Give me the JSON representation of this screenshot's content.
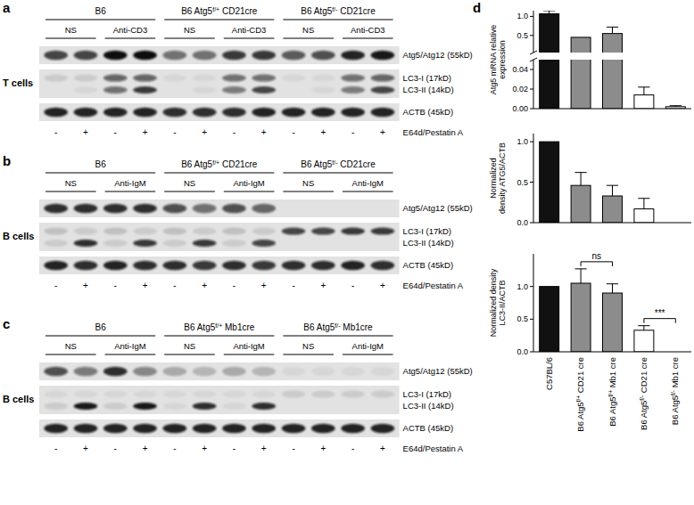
{
  "blots": [
    {
      "label": "a",
      "cell_type": "T cells",
      "groups": [
        "B6",
        "B6 Atg5f/+ CD21cre",
        "B6 Atg5f/- CD21cre"
      ],
      "stimuli": [
        "NS",
        "Anti-CD3"
      ],
      "treatment": {
        "label": "E64d/Pestatin A",
        "lanes": [
          "-",
          "+",
          "-",
          "+",
          "-",
          "+",
          "-",
          "+",
          "-",
          "+",
          "-",
          "+"
        ]
      },
      "rows": [
        {
          "labels": [
            "Atg5/Atg12 (55kD)"
          ],
          "bands": [
            [
              0.75,
              0.75,
              1,
              1,
              0.55,
              0.55,
              0.8,
              0.8,
              0.65,
              0.7,
              0.9,
              0.95
            ]
          ]
        },
        {
          "labels": [
            "LC3-I (17kD)",
            "LC3-II (14kD)"
          ],
          "bands": [
            [
              0.1,
              0.1,
              0.6,
              0.6,
              0.05,
              0.05,
              0.55,
              0.55,
              0.05,
              0.05,
              0.55,
              0.6
            ],
            [
              0,
              0.05,
              0.55,
              0.8,
              0,
              0.05,
              0.5,
              0.75,
              0,
              0.05,
              0.5,
              0.75
            ]
          ]
        },
        {
          "labels": [
            "ACTB (45kD)"
          ],
          "bands": [
            [
              0.9,
              0.9,
              0.9,
              0.9,
              0.85,
              0.85,
              0.85,
              0.9,
              0.9,
              0.9,
              0.9,
              0.9
            ]
          ]
        }
      ]
    },
    {
      "label": "b",
      "cell_type": "B cells",
      "groups": [
        "B6",
        "B6 Atg5f/+ CD21cre",
        "B6 Atg5f/- CD21cre"
      ],
      "stimuli": [
        "NS",
        "Anti-IgM"
      ],
      "treatment": {
        "label": "E64d/Pestatin A",
        "lanes": [
          "-",
          "+",
          "-",
          "+",
          "-",
          "+",
          "-",
          "+",
          "-",
          "+",
          "-",
          "+"
        ]
      },
      "rows": [
        {
          "labels": [
            "Atg5/Atg12 (55kD)"
          ],
          "bands": [
            [
              0.85,
              0.85,
              0.85,
              0.85,
              0.7,
              0.55,
              0.7,
              0.6,
              0,
              0,
              0,
              0
            ]
          ]
        },
        {
          "labels": [
            "LC3-I (17kD)",
            "LC3-II (14kD)"
          ],
          "bands": [
            [
              0.15,
              0.1,
              0.15,
              0.1,
              0.15,
              0.1,
              0.15,
              0.1,
              0.75,
              0.75,
              0.8,
              0.8
            ],
            [
              0.1,
              0.85,
              0.1,
              0.8,
              0.1,
              0.8,
              0.1,
              0.75,
              0,
              0,
              0,
              0
            ]
          ]
        },
        {
          "labels": [
            "ACTB (45kD)"
          ],
          "bands": [
            [
              0.9,
              0.85,
              0.9,
              0.85,
              0.85,
              0.8,
              0.85,
              0.8,
              0.85,
              0.85,
              0.9,
              0.85
            ]
          ]
        }
      ]
    },
    {
      "label": "c",
      "cell_type": "B cells",
      "groups": [
        "B6",
        "B6 Atg5f/+ Mb1cre",
        "B6 Atg5f/- Mb1cre"
      ],
      "stimuli": [
        "NS",
        "Anti-IgM"
      ],
      "treatment": {
        "label": "E64d/Pestatin A",
        "lanes": [
          "-",
          "+",
          "-",
          "+",
          "-",
          "+",
          "-",
          "+",
          "-",
          "+",
          "-",
          "+"
        ]
      },
      "rows": [
        {
          "labels": [
            "Atg5/Atg12 (55kD)"
          ],
          "bands": [
            [
              0.7,
              0.5,
              0.85,
              0.45,
              0.25,
              0.2,
              0.25,
              0.2,
              0.05,
              0.05,
              0.05,
              0.05
            ]
          ]
        },
        {
          "labels": [
            "LC3-I (17kD)",
            "LC3-II (14kD)"
          ],
          "bands": [
            [
              0.05,
              0.05,
              0.05,
              0.05,
              0.05,
              0.05,
              0.05,
              0.05,
              0.1,
              0.1,
              0.1,
              0.1
            ],
            [
              0.1,
              0.95,
              0.1,
              0.95,
              0.05,
              0.85,
              0.05,
              0.85,
              0,
              0,
              0,
              0
            ]
          ]
        },
        {
          "labels": [
            "ACTB (45kD)"
          ],
          "bands": [
            [
              0.9,
              0.9,
              0.9,
              0.9,
              0.9,
              0.9,
              0.9,
              0.9,
              0.9,
              0.9,
              0.9,
              0.9
            ]
          ]
        }
      ]
    }
  ],
  "panel_label": "d",
  "chart_data": [
    {
      "type": "bar",
      "y_label": "Atg5 mRNA relative expression",
      "categories": [
        "C57BL/6",
        "B6 Atg5f/+ CD21 cre",
        "B6 Atg5f/+ Mb1 cre",
        "B6 Atg5f/- CD21 cre",
        "B6 Atg5f/- Mb1 cre"
      ],
      "values": [
        1.07,
        0.45,
        0.55,
        0.014,
        0.002
      ],
      "errors": [
        0.08,
        null,
        0.17,
        0.008,
        0.001
      ],
      "colors": [
        "#111111",
        "#8c8c8c",
        "#8c8c8c",
        "#ffffff",
        "#ffffff"
      ],
      "ylim": [
        0,
        1.15
      ],
      "yticks": [
        {
          "value": 0,
          "label": "0.00"
        },
        {
          "value": 0.02,
          "label": "0.02"
        },
        {
          "value": 0.04,
          "label": "0.04"
        },
        {
          "value": 0.5,
          "label": "0.5"
        },
        {
          "value": 1,
          "label": "1.0"
        }
      ],
      "tick_labels": "y"
    },
    {
      "type": "bar",
      "y_label": "Normalized density ATG5/ACTB",
      "categories": [
        "C57BL/6",
        "B6 Atg5f/+ CD21 cre",
        "B6 Atg5f/+ Mb1 cre",
        "B6 Atg5f/- CD21 cre",
        "B6 Atg5f/- Mb1 cre"
      ],
      "values": [
        1,
        0.46,
        0.33,
        0.17,
        0
      ],
      "errors": [
        null,
        0.16,
        0.13,
        0.13,
        null
      ],
      "colors": [
        "#111111",
        "#8c8c8c",
        "#8c8c8c",
        "#ffffff",
        "#ffffff"
      ],
      "ylim": [
        0,
        1.1
      ],
      "yticks": [
        {
          "value": 0,
          "label": "0.0"
        },
        {
          "value": 0.5,
          "label": "0.5"
        },
        {
          "value": 1,
          "label": "1.0"
        }
      ],
      "tick_labels": "y"
    },
    {
      "type": "bar",
      "y_label": "Normalized density LC3-II/ACTB",
      "categories": [
        "C57BL/6",
        "B6 Atg5f/+ CD21 cre",
        "B6 Atg5f/+ Mb1 cre",
        "B6 Atg5f/- CD21 cre",
        "B6 Atg5f/- Mb1 cre"
      ],
      "values": [
        1,
        1.05,
        0.9,
        0.33,
        0
      ],
      "errors": [
        null,
        0.22,
        0.14,
        0.07,
        null
      ],
      "colors": [
        "#111111",
        "#8c8c8c",
        "#8c8c8c",
        "#ffffff",
        "#ffffff"
      ],
      "ylim": [
        0,
        1.5
      ],
      "yticks": [
        {
          "value": 0,
          "label": "0.0"
        },
        {
          "value": 0.5,
          "label": "0.5"
        },
        {
          "value": 1,
          "label": "1.0"
        }
      ],
      "annotations": [
        {
          "text": "ns",
          "between": [
            1,
            2
          ]
        },
        {
          "text": "***",
          "between": [
            3,
            4
          ]
        }
      ]
    }
  ]
}
